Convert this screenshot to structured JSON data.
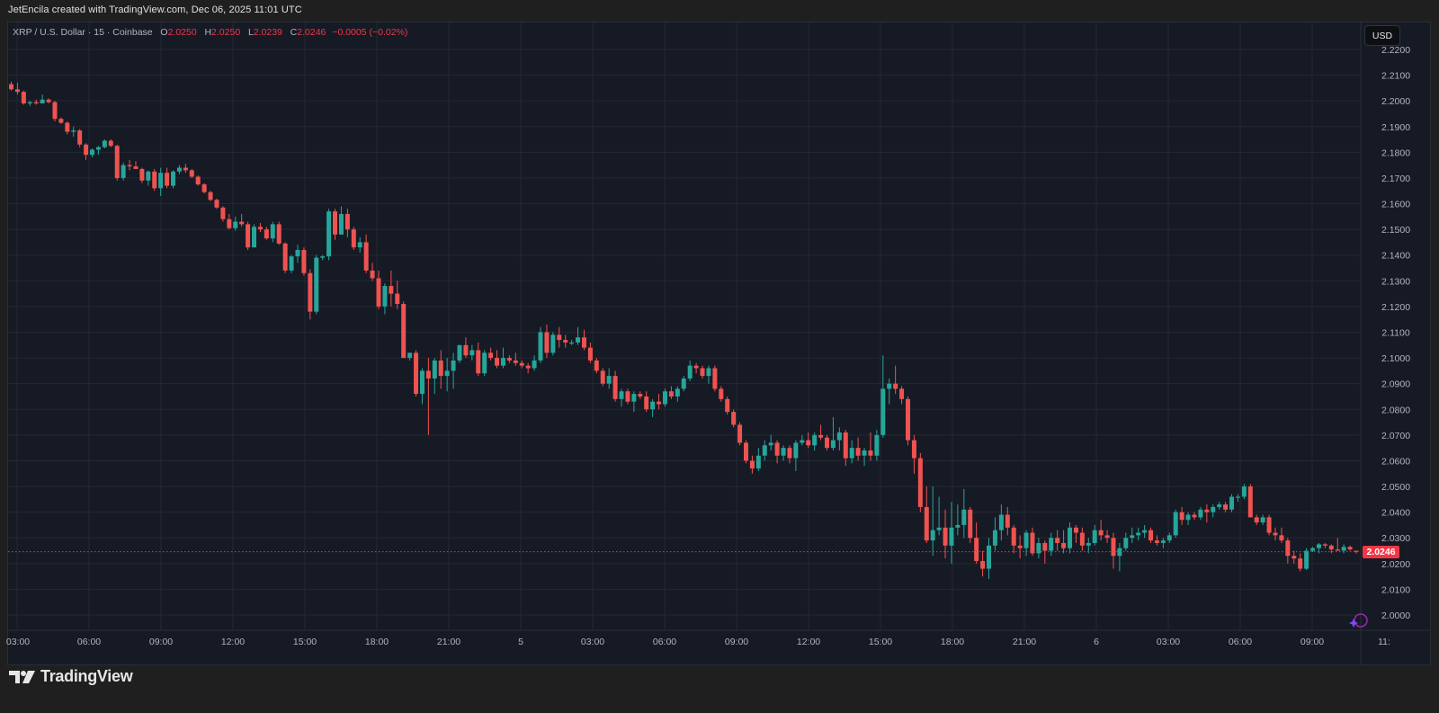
{
  "caption": "JetEncila created with TradingView.com, Dec 06, 2025 11:01 UTC",
  "legend": {
    "symbol": "XRP / U.S. Dollar · 15 · Coinbase",
    "o_label": "O",
    "o_value": "2.0250",
    "h_label": "H",
    "h_value": "2.0250",
    "l_label": "L",
    "l_value": "2.0239",
    "c_label": "C",
    "c_value": "2.0246",
    "change": "−0.0005 (−0.02%)"
  },
  "currency_button": "USD",
  "last_price_label": "2.0246",
  "brand": "TradingView",
  "colors": {
    "up": "#26a69a",
    "down": "#ef5350",
    "background": "#161a25",
    "grid": "#242833",
    "last_price_line": "#f23645"
  },
  "chart_data": {
    "type": "candlestick",
    "title": "XRP / U.S. Dollar · 15 · Coinbase",
    "interval": "15",
    "exchange": "Coinbase",
    "xlabel": "",
    "ylabel": "USD",
    "ylim": [
      1.9955,
      2.2255
    ],
    "grid": true,
    "y_ticks": [
      "2.2200",
      "2.2100",
      "2.2000",
      "2.1900",
      "2.1800",
      "2.1700",
      "2.1600",
      "2.1500",
      "2.1400",
      "2.1300",
      "2.1200",
      "2.1100",
      "2.1000",
      "2.0900",
      "2.0800",
      "2.0700",
      "2.0600",
      "2.0500",
      "2.0400",
      "2.0300",
      "2.0200",
      "2.0100",
      "2.0000"
    ],
    "x_ticks": [
      "03:00",
      "06:00",
      "09:00",
      "12:00",
      "15:00",
      "18:00",
      "21:00",
      "5",
      "03:00",
      "06:00",
      "09:00",
      "12:00",
      "15:00",
      "18:00",
      "21:00",
      "6",
      "03:00",
      "06:00",
      "09:00",
      "11:"
    ],
    "last_price": 2.0246,
    "ohlc": [
      [
        2.2065,
        2.2075,
        2.204,
        2.2045
      ],
      [
        2.2045,
        2.207,
        2.2025,
        2.2035
      ],
      [
        2.2035,
        2.204,
        2.1985,
        2.199
      ],
      [
        2.199,
        2.2,
        2.198,
        2.1995
      ],
      [
        2.1995,
        2.2005,
        2.1985,
        2.199
      ],
      [
        2.199,
        2.2025,
        2.199,
        2.2005
      ],
      [
        2.2005,
        2.201,
        2.199,
        2.1995
      ],
      [
        2.1995,
        2.2,
        2.192,
        2.193
      ],
      [
        2.193,
        2.1935,
        2.191,
        2.1915
      ],
      [
        2.1915,
        2.192,
        2.187,
        2.188
      ],
      [
        2.188,
        2.19,
        2.186,
        2.1885
      ],
      [
        2.1885,
        2.189,
        2.182,
        2.183
      ],
      [
        2.183,
        2.1835,
        2.177,
        2.179
      ],
      [
        2.179,
        2.1815,
        2.178,
        2.181
      ],
      [
        2.181,
        2.1825,
        2.179,
        2.182
      ],
      [
        2.182,
        2.185,
        2.1815,
        2.1845
      ],
      [
        2.1845,
        2.185,
        2.182,
        2.1825
      ],
      [
        2.1825,
        2.183,
        2.169,
        2.17
      ],
      [
        2.17,
        2.176,
        2.169,
        2.175
      ],
      [
        2.175,
        2.177,
        2.173,
        2.1745
      ],
      [
        2.1745,
        2.1765,
        2.1735,
        2.1735
      ],
      [
        2.1735,
        2.174,
        2.168,
        2.169
      ],
      [
        2.169,
        2.173,
        2.167,
        2.1725
      ],
      [
        2.1725,
        2.1735,
        2.165,
        2.166
      ],
      [
        2.166,
        2.174,
        2.163,
        2.172
      ],
      [
        2.172,
        2.174,
        2.166,
        2.167
      ],
      [
        2.167,
        2.173,
        2.166,
        2.1725
      ],
      [
        2.1725,
        2.175,
        2.1715,
        2.174
      ],
      [
        2.174,
        2.1755,
        2.172,
        2.173
      ],
      [
        2.173,
        2.1735,
        2.17,
        2.1705
      ],
      [
        2.1705,
        2.171,
        2.167,
        2.1675
      ],
      [
        2.1675,
        2.168,
        2.164,
        2.1645
      ],
      [
        2.1645,
        2.165,
        2.161,
        2.1615
      ],
      [
        2.1615,
        2.162,
        2.158,
        2.1585
      ],
      [
        2.1585,
        2.159,
        2.153,
        2.154
      ],
      [
        2.154,
        2.156,
        2.15,
        2.1505
      ],
      [
        2.1505,
        2.155,
        2.1495,
        2.153
      ],
      [
        2.153,
        2.156,
        2.151,
        2.152
      ],
      [
        2.152,
        2.153,
        2.142,
        2.143
      ],
      [
        2.143,
        2.152,
        2.143,
        2.151
      ],
      [
        2.151,
        2.1525,
        2.149,
        2.15
      ],
      [
        2.15,
        2.151,
        2.146,
        2.1465
      ],
      [
        2.1465,
        2.153,
        2.145,
        2.152
      ],
      [
        2.152,
        2.153,
        2.144,
        2.1445
      ],
      [
        2.1445,
        2.145,
        2.133,
        2.134
      ],
      [
        2.134,
        2.14,
        2.133,
        2.1395
      ],
      [
        2.1395,
        2.144,
        2.137,
        2.142
      ],
      [
        2.142,
        2.143,
        2.132,
        2.133
      ],
      [
        2.133,
        2.1345,
        2.115,
        2.118
      ],
      [
        2.118,
        2.14,
        2.117,
        2.139
      ],
      [
        2.139,
        2.14,
        2.138,
        2.1395
      ],
      [
        2.1395,
        2.158,
        2.138,
        2.157
      ],
      [
        2.157,
        2.158,
        2.146,
        2.148
      ],
      [
        2.148,
        2.159,
        2.148,
        2.156
      ],
      [
        2.156,
        2.158,
        2.147,
        2.15
      ],
      [
        2.15,
        2.151,
        2.142,
        2.143
      ],
      [
        2.143,
        2.147,
        2.141,
        2.145
      ],
      [
        2.145,
        2.148,
        2.133,
        2.134
      ],
      [
        2.134,
        2.137,
        2.13,
        2.131
      ],
      [
        2.131,
        2.134,
        2.119,
        2.12
      ],
      [
        2.12,
        2.129,
        2.117,
        2.128
      ],
      [
        2.128,
        2.134,
        2.12,
        2.125
      ],
      [
        2.125,
        2.13,
        2.119,
        2.121
      ],
      [
        2.121,
        2.122,
        2.107,
        2.1
      ],
      [
        2.1,
        2.102,
        2.099,
        2.102
      ],
      [
        2.102,
        2.103,
        2.085,
        2.086
      ],
      [
        2.086,
        2.096,
        2.082,
        2.095
      ],
      [
        2.095,
        2.1,
        2.07,
        2.092
      ],
      [
        2.092,
        2.1,
        2.086,
        2.099
      ],
      [
        2.099,
        2.103,
        2.088,
        2.093
      ],
      [
        2.093,
        2.1,
        2.087,
        2.095
      ],
      [
        2.095,
        2.102,
        2.088,
        2.099
      ],
      [
        2.099,
        2.105,
        2.098,
        2.105
      ],
      [
        2.105,
        2.108,
        2.1,
        2.101
      ],
      [
        2.101,
        2.105,
        2.099,
        2.103
      ],
      [
        2.103,
        2.106,
        2.093,
        2.094
      ],
      [
        2.094,
        2.103,
        2.093,
        2.102
      ],
      [
        2.102,
        2.104,
        2.099,
        2.1
      ],
      [
        2.1,
        2.103,
        2.096,
        2.097
      ],
      [
        2.097,
        2.104,
        2.096,
        2.1
      ],
      [
        2.1,
        2.101,
        2.098,
        2.099
      ],
      [
        2.099,
        2.102,
        2.097,
        2.098
      ],
      [
        2.098,
        2.099,
        2.096,
        2.097
      ],
      [
        2.097,
        2.098,
        2.094,
        2.096
      ],
      [
        2.096,
        2.101,
        2.095,
        2.099
      ],
      [
        2.099,
        2.112,
        2.098,
        2.11
      ],
      [
        2.11,
        2.113,
        2.1,
        2.102
      ],
      [
        2.102,
        2.11,
        2.101,
        2.109
      ],
      [
        2.109,
        2.112,
        2.104,
        2.107
      ],
      [
        2.107,
        2.109,
        2.104,
        2.106
      ],
      [
        2.106,
        2.107,
        2.105,
        2.106
      ],
      [
        2.106,
        2.112,
        2.105,
        2.108
      ],
      [
        2.108,
        2.111,
        2.103,
        2.104
      ],
      [
        2.104,
        2.106,
        2.098,
        2.099
      ],
      [
        2.099,
        2.1,
        2.094,
        2.095
      ],
      [
        2.095,
        2.096,
        2.089,
        2.09
      ],
      [
        2.09,
        2.096,
        2.088,
        2.093
      ],
      [
        2.093,
        2.095,
        2.083,
        2.084
      ],
      [
        2.084,
        2.088,
        2.081,
        2.087
      ],
      [
        2.087,
        2.088,
        2.082,
        2.083
      ],
      [
        2.083,
        2.087,
        2.079,
        2.086
      ],
      [
        2.086,
        2.087,
        2.084,
        2.085
      ],
      [
        2.085,
        2.087,
        2.079,
        2.08
      ],
      [
        2.08,
        2.084,
        2.077,
        2.083
      ],
      [
        2.083,
        2.086,
        2.08,
        2.082
      ],
      [
        2.082,
        2.088,
        2.081,
        2.087
      ],
      [
        2.087,
        2.089,
        2.084,
        2.085
      ],
      [
        2.085,
        2.089,
        2.083,
        2.088
      ],
      [
        2.088,
        2.093,
        2.087,
        2.092
      ],
      [
        2.092,
        2.099,
        2.091,
        2.097
      ],
      [
        2.097,
        2.098,
        2.094,
        2.096
      ],
      [
        2.096,
        2.097,
        2.092,
        2.093
      ],
      [
        2.093,
        2.097,
        2.09,
        2.096
      ],
      [
        2.096,
        2.097,
        2.087,
        2.088
      ],
      [
        2.088,
        2.089,
        2.083,
        2.084
      ],
      [
        2.084,
        2.085,
        2.078,
        2.079
      ],
      [
        2.079,
        2.08,
        2.073,
        2.074
      ],
      [
        2.074,
        2.075,
        2.066,
        2.067
      ],
      [
        2.067,
        2.068,
        2.059,
        2.06
      ],
      [
        2.06,
        2.062,
        2.055,
        2.057
      ],
      [
        2.057,
        2.065,
        2.056,
        2.062
      ],
      [
        2.062,
        2.068,
        2.06,
        2.066
      ],
      [
        2.066,
        2.07,
        2.064,
        2.067
      ],
      [
        2.067,
        2.068,
        2.059,
        2.062
      ],
      [
        2.062,
        2.066,
        2.06,
        2.065
      ],
      [
        2.065,
        2.066,
        2.059,
        2.061
      ],
      [
        2.061,
        2.068,
        2.056,
        2.067
      ],
      [
        2.067,
        2.07,
        2.066,
        2.068
      ],
      [
        2.068,
        2.071,
        2.065,
        2.066
      ],
      [
        2.066,
        2.071,
        2.064,
        2.07
      ],
      [
        2.07,
        2.074,
        2.068,
        2.069
      ],
      [
        2.069,
        2.07,
        2.064,
        2.065
      ],
      [
        2.065,
        2.077,
        2.064,
        2.068
      ],
      [
        2.068,
        2.073,
        2.064,
        2.071
      ],
      [
        2.071,
        2.072,
        2.058,
        2.061
      ],
      [
        2.061,
        2.068,
        2.059,
        2.065
      ],
      [
        2.065,
        2.069,
        2.06,
        2.062
      ],
      [
        2.062,
        2.065,
        2.058,
        2.064
      ],
      [
        2.064,
        2.071,
        2.06,
        2.062
      ],
      [
        2.062,
        2.072,
        2.06,
        2.07
      ],
      [
        2.07,
        2.101,
        2.069,
        2.088
      ],
      [
        2.088,
        2.092,
        2.082,
        2.09
      ],
      [
        2.09,
        2.097,
        2.086,
        2.088
      ],
      [
        2.088,
        2.089,
        2.082,
        2.084
      ],
      [
        2.084,
        2.085,
        2.066,
        2.068
      ],
      [
        2.068,
        2.07,
        2.055,
        2.061
      ],
      [
        2.061,
        2.063,
        2.04,
        2.042
      ],
      [
        2.042,
        2.05,
        2.028,
        2.029
      ],
      [
        2.029,
        2.05,
        2.023,
        2.033
      ],
      [
        2.033,
        2.046,
        2.031,
        2.034
      ],
      [
        2.034,
        2.041,
        2.022,
        2.027
      ],
      [
        2.027,
        2.044,
        2.02,
        2.034
      ],
      [
        2.034,
        2.043,
        2.031,
        2.035
      ],
      [
        2.035,
        2.049,
        2.03,
        2.041
      ],
      [
        2.041,
        2.042,
        2.028,
        2.03
      ],
      [
        2.03,
        2.036,
        2.02,
        2.021
      ],
      [
        2.021,
        2.025,
        2.015,
        2.018
      ],
      [
        2.018,
        2.03,
        2.014,
        2.027
      ],
      [
        2.027,
        2.038,
        2.025,
        2.033
      ],
      [
        2.033,
        2.043,
        2.029,
        2.039
      ],
      [
        2.039,
        2.042,
        2.031,
        2.034
      ],
      [
        2.034,
        2.035,
        2.024,
        2.027
      ],
      [
        2.027,
        2.031,
        2.022,
        2.026
      ],
      [
        2.026,
        2.033,
        2.023,
        2.032
      ],
      [
        2.032,
        2.034,
        2.023,
        2.024
      ],
      [
        2.024,
        2.03,
        2.022,
        2.028
      ],
      [
        2.028,
        2.029,
        2.02,
        2.025
      ],
      [
        2.025,
        2.032,
        2.023,
        2.03
      ],
      [
        2.03,
        2.033,
        2.025,
        2.028
      ],
      [
        2.028,
        2.033,
        2.024,
        2.026
      ],
      [
        2.026,
        2.036,
        2.024,
        2.034
      ],
      [
        2.034,
        2.035,
        2.028,
        2.032
      ],
      [
        2.032,
        2.034,
        2.025,
        2.027
      ],
      [
        2.027,
        2.03,
        2.024,
        2.028
      ],
      [
        2.028,
        2.035,
        2.027,
        2.033
      ],
      [
        2.033,
        2.037,
        2.029,
        2.031
      ],
      [
        2.031,
        2.033,
        2.028,
        2.03
      ],
      [
        2.03,
        2.032,
        2.018,
        2.023
      ],
      [
        2.023,
        2.028,
        2.017,
        2.026
      ],
      [
        2.026,
        2.032,
        2.025,
        2.03
      ],
      [
        2.03,
        2.034,
        2.028,
        2.031
      ],
      [
        2.031,
        2.034,
        2.029,
        2.032
      ],
      [
        2.032,
        2.035,
        2.03,
        2.033
      ],
      [
        2.033,
        2.034,
        2.028,
        2.029
      ],
      [
        2.029,
        2.031,
        2.027,
        2.028
      ],
      [
        2.028,
        2.03,
        2.026,
        2.029
      ],
      [
        2.029,
        2.032,
        2.028,
        2.031
      ],
      [
        2.031,
        2.041,
        2.03,
        2.04
      ],
      [
        2.04,
        2.042,
        2.035,
        2.037
      ],
      [
        2.037,
        2.04,
        2.035,
        2.039
      ],
      [
        2.039,
        2.04,
        2.037,
        2.038
      ],
      [
        2.038,
        2.042,
        2.037,
        2.041
      ],
      [
        2.041,
        2.043,
        2.036,
        2.04
      ],
      [
        2.04,
        2.043,
        2.038,
        2.042
      ],
      [
        2.042,
        2.044,
        2.041,
        2.043
      ],
      [
        2.043,
        2.044,
        2.04,
        2.041
      ],
      [
        2.041,
        2.047,
        2.04,
        2.046
      ],
      [
        2.046,
        2.047,
        2.044,
        2.046
      ],
      [
        2.046,
        2.051,
        2.045,
        2.05
      ],
      [
        2.05,
        2.051,
        2.038,
        2.038
      ],
      [
        2.038,
        2.039,
        2.035,
        2.036
      ],
      [
        2.036,
        2.039,
        2.035,
        2.038
      ],
      [
        2.038,
        2.039,
        2.031,
        2.032
      ],
      [
        2.032,
        2.034,
        2.029,
        2.031
      ],
      [
        2.031,
        2.034,
        2.028,
        2.029
      ],
      [
        2.029,
        2.03,
        2.02,
        2.023
      ],
      [
        2.023,
        2.025,
        2.02,
        2.022
      ],
      [
        2.022,
        2.024,
        2.017,
        2.018
      ],
      [
        2.018,
        2.026,
        2.0175,
        2.025
      ],
      [
        2.025,
        2.0265,
        2.0245,
        2.026
      ],
      [
        2.026,
        2.028,
        2.024,
        2.0275
      ],
      [
        2.0275,
        2.028,
        2.026,
        2.027
      ],
      [
        2.027,
        2.0275,
        2.024,
        2.0255
      ],
      [
        2.0255,
        2.03,
        2.025,
        2.025
      ],
      [
        2.025,
        2.0275,
        2.024,
        2.0265
      ],
      [
        2.0265,
        2.027,
        2.025,
        2.0255
      ],
      [
        2.025,
        2.025,
        2.0239,
        2.0246
      ]
    ]
  }
}
